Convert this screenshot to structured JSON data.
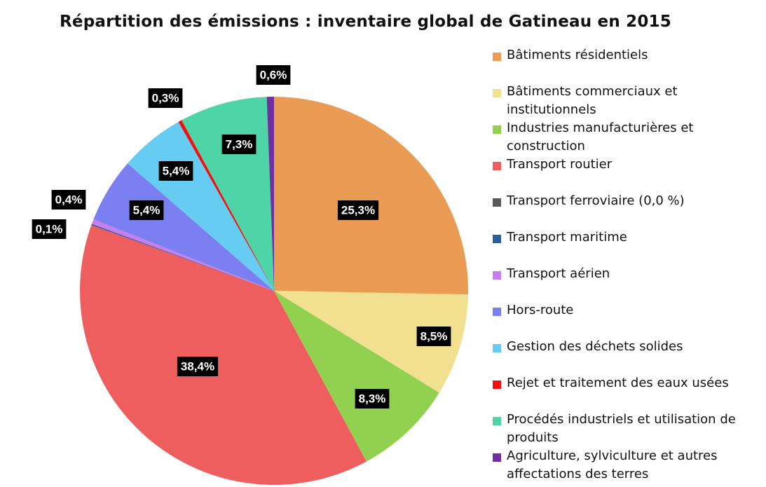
{
  "chart_data": {
    "type": "pie",
    "title": "Répartition des émissions : inventaire global de Gatineau en 2015",
    "legend_position": "right",
    "slices": [
      {
        "label": "Bâtiments résidentiels",
        "value": 25.3,
        "value_label": "25,3%",
        "color": "#EA9C55"
      },
      {
        "label": "Bâtiments commerciaux et institutionnels",
        "value": 8.5,
        "value_label": "8,5%",
        "color": "#F1E08F"
      },
      {
        "label": "Industries manufacturières et construction",
        "value": 8.3,
        "value_label": "8,3%",
        "color": "#92D050"
      },
      {
        "label": "Transport routier",
        "value": 38.4,
        "value_label": "38,4%",
        "color": "#EE5E5F"
      },
      {
        "label": "Transport ferroviaire (0,0 %)",
        "value": 0.0,
        "value_label": "",
        "color": "#595959"
      },
      {
        "label": "Transport maritime",
        "value": 0.1,
        "value_label": "0,1%",
        "color": "#2A5F95"
      },
      {
        "label": "Transport aérien",
        "value": 0.4,
        "value_label": "0,4%",
        "color": "#C87EF0"
      },
      {
        "label": "Hors-route",
        "value": 5.4,
        "value_label": "5,4%",
        "color": "#7C7FEF"
      },
      {
        "label": "Gestion des déchets solides",
        "value": 5.4,
        "value_label": "5,4%",
        "color": "#66CCF2"
      },
      {
        "label": "Rejet et traitement des eaux usées",
        "value": 0.3,
        "value_label": "0,3%",
        "color": "#F01010"
      },
      {
        "label": "Procédés industriels et utilisation de produits",
        "value": 7.3,
        "value_label": "7,3%",
        "color": "#4FD4A8"
      },
      {
        "label": "Agriculture, sylviculture et autres affectations des terres",
        "value": 0.6,
        "value_label": "0,6%",
        "color": "#7030A0"
      }
    ]
  }
}
